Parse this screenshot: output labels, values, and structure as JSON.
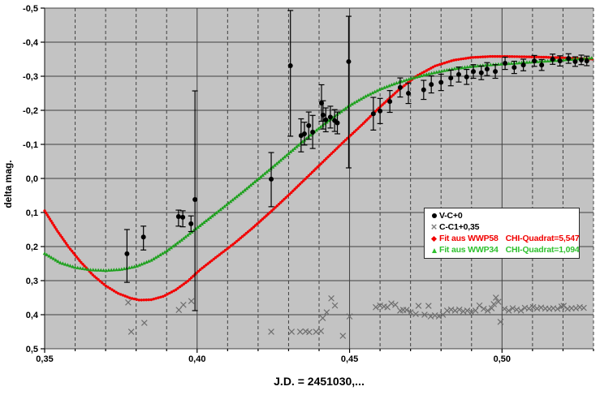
{
  "colors": {
    "plot_background": "#c3c3c3",
    "page_background": "#ffffff",
    "gridline": "#404040",
    "series_black": "#000000",
    "series_gray": "#6e6e6e",
    "series_red": "#f20000",
    "series_green": "#1da11d",
    "legend_green_text": "#2fc12f",
    "legend_red_text": "#f20000"
  },
  "legend": {
    "items": [
      {
        "marker": "circle",
        "color": "#000000",
        "text_color": "#000000",
        "label": "V-C+0",
        "chi": ""
      },
      {
        "marker": "x",
        "color": "#808080",
        "text_color": "#000000",
        "label": "C-C1+0,35",
        "chi": ""
      },
      {
        "marker": "diamond",
        "color": "#f20000",
        "text_color": "#f20000",
        "label": "Fit aus WWP58",
        "chi": "CHI-Quadrat=5,547"
      },
      {
        "marker": "triangle",
        "color": "#2fc12f",
        "text_color": "#2fc12f",
        "label": "Fit aus WWP34",
        "chi": "CHI-Quadrat=1,094"
      }
    ]
  },
  "chart_data": {
    "type": "scatter",
    "title": "",
    "xlabel": "J.D. = 2451030,...",
    "ylabel": "delta mag.",
    "grid": "major-horizontal solid, minor-vertical dashed, gray plot background",
    "legend_position": "middle-right inside plot, white box",
    "x_axis": {
      "min": 0.35,
      "max": 0.53,
      "minor_step": 0.01,
      "major_step": 0.05,
      "tick_labels": [
        {
          "value": 0.35,
          "label": "0,35"
        },
        {
          "value": 0.4,
          "label": "0,40"
        },
        {
          "value": 0.45,
          "label": "0,45"
        },
        {
          "value": 0.5,
          "label": "0,50"
        }
      ]
    },
    "y_axis": {
      "min": -0.5,
      "max": 0.5,
      "step": 0.1,
      "inverted": true,
      "tick_labels": [
        {
          "value": -0.5,
          "label": "-0,5"
        },
        {
          "value": -0.4,
          "label": "-0,4"
        },
        {
          "value": -0.3,
          "label": "-0,3"
        },
        {
          "value": -0.2,
          "label": "-0,2"
        },
        {
          "value": -0.1,
          "label": "-0,1"
        },
        {
          "value": 0.0,
          "label": "0,0"
        },
        {
          "value": 0.1,
          "label": "0,1"
        },
        {
          "value": 0.2,
          "label": "0,2"
        },
        {
          "value": 0.3,
          "label": "0,3"
        },
        {
          "value": 0.4,
          "label": "0,4"
        },
        {
          "value": 0.5,
          "label": "0,5"
        }
      ]
    },
    "series": [
      {
        "name": "V-C+0",
        "type": "scatter",
        "marker": "circle",
        "color": "#000000",
        "error_bars": true,
        "points_format": [
          "jd",
          "mag",
          "bar_top_mag",
          "bar_bottom_mag"
        ],
        "points": [
          [
            0.377,
            0.221,
            0.15,
            0.305
          ],
          [
            0.3824,
            0.172,
            0.14,
            0.21
          ],
          [
            0.3939,
            0.112,
            0.093,
            0.14
          ],
          [
            0.3953,
            0.114,
            0.095,
            0.142
          ],
          [
            0.398,
            0.133,
            0.11,
            0.156
          ],
          [
            0.3993,
            0.062,
            -0.257,
            0.388
          ],
          [
            0.4243,
            0.002,
            -0.076,
            0.083
          ],
          [
            0.4306,
            -0.331,
            -0.493,
            -0.124
          ],
          [
            0.4341,
            -0.126,
            -0.175,
            -0.078
          ],
          [
            0.4352,
            -0.131,
            -0.165,
            -0.098
          ],
          [
            0.4366,
            -0.155,
            -0.195,
            -0.115
          ],
          [
            0.4379,
            -0.136,
            -0.185,
            -0.088
          ],
          [
            0.4408,
            -0.221,
            -0.275,
            -0.168
          ],
          [
            0.4413,
            -0.186,
            -0.228,
            -0.145
          ],
          [
            0.4422,
            -0.172,
            -0.207,
            -0.137
          ],
          [
            0.4437,
            -0.18,
            -0.212,
            -0.148
          ],
          [
            0.4451,
            -0.17,
            -0.202,
            -0.138
          ],
          [
            0.446,
            -0.163,
            -0.195,
            -0.131
          ],
          [
            0.4497,
            -0.343,
            -0.476,
            -0.031
          ],
          [
            0.4578,
            -0.19,
            -0.238,
            -0.142
          ],
          [
            0.46,
            -0.198,
            -0.235,
            -0.161
          ],
          [
            0.4632,
            -0.226,
            -0.258,
            -0.194
          ],
          [
            0.4666,
            -0.267,
            -0.295,
            -0.239
          ],
          [
            0.4693,
            -0.25,
            -0.28,
            -0.22
          ],
          [
            0.4743,
            -0.26,
            -0.288,
            -0.232
          ],
          [
            0.4768,
            -0.276,
            -0.301,
            -0.251
          ],
          [
            0.48,
            -0.282,
            -0.306,
            -0.258
          ],
          [
            0.4832,
            -0.295,
            -0.318,
            -0.272
          ],
          [
            0.4858,
            -0.305,
            -0.327,
            -0.283
          ],
          [
            0.4884,
            -0.298,
            -0.32,
            -0.276
          ],
          [
            0.4906,
            -0.314,
            -0.334,
            -0.294
          ],
          [
            0.4932,
            -0.31,
            -0.33,
            -0.29
          ],
          [
            0.4951,
            -0.321,
            -0.34,
            -0.302
          ],
          [
            0.4978,
            -0.314,
            -0.334,
            -0.294
          ],
          [
            0.501,
            -0.338,
            -0.356,
            -0.32
          ],
          [
            0.504,
            -0.326,
            -0.344,
            -0.308
          ],
          [
            0.507,
            -0.333,
            -0.35,
            -0.316
          ],
          [
            0.5106,
            -0.345,
            -0.361,
            -0.329
          ],
          [
            0.513,
            -0.333,
            -0.349,
            -0.317
          ],
          [
            0.5166,
            -0.35,
            -0.365,
            -0.335
          ],
          [
            0.519,
            -0.345,
            -0.36,
            -0.33
          ],
          [
            0.5218,
            -0.352,
            -0.366,
            -0.338
          ],
          [
            0.524,
            -0.343,
            -0.357,
            -0.329
          ],
          [
            0.526,
            -0.348,
            -0.362,
            -0.334
          ],
          [
            0.5278,
            -0.345,
            -0.359,
            -0.331
          ]
        ]
      },
      {
        "name": "C-C1+0,35",
        "type": "scatter",
        "marker": "x",
        "color": "#6e6e6e",
        "error_bars": false,
        "points_format": [
          "jd",
          "mag"
        ],
        "points": [
          [
            0.3774,
            0.364
          ],
          [
            0.3784,
            0.45
          ],
          [
            0.3827,
            0.424
          ],
          [
            0.394,
            0.386
          ],
          [
            0.3955,
            0.371
          ],
          [
            0.3981,
            0.36
          ],
          [
            0.4243,
            0.45
          ],
          [
            0.431,
            0.45
          ],
          [
            0.4338,
            0.45
          ],
          [
            0.4356,
            0.449
          ],
          [
            0.4368,
            0.451
          ],
          [
            0.439,
            0.45
          ],
          [
            0.4406,
            0.448
          ],
          [
            0.4412,
            0.41
          ],
          [
            0.4425,
            0.393
          ],
          [
            0.444,
            0.352
          ],
          [
            0.4452,
            0.373
          ],
          [
            0.4478,
            0.462
          ],
          [
            0.45,
            0.405
          ],
          [
            0.4586,
            0.378
          ],
          [
            0.46,
            0.373
          ],
          [
            0.4613,
            0.376
          ],
          [
            0.4624,
            0.378
          ],
          [
            0.4637,
            0.367
          ],
          [
            0.465,
            0.371
          ],
          [
            0.4666,
            0.388
          ],
          [
            0.4676,
            0.386
          ],
          [
            0.4687,
            0.386
          ],
          [
            0.47,
            0.393
          ],
          [
            0.4717,
            0.398
          ],
          [
            0.4726,
            0.374
          ],
          [
            0.4746,
            0.4
          ],
          [
            0.4759,
            0.374
          ],
          [
            0.4766,
            0.405
          ],
          [
            0.478,
            0.402
          ],
          [
            0.4793,
            0.405
          ],
          [
            0.4806,
            0.4
          ],
          [
            0.482,
            0.388
          ],
          [
            0.4833,
            0.385
          ],
          [
            0.4846,
            0.388
          ],
          [
            0.486,
            0.385
          ],
          [
            0.4873,
            0.39
          ],
          [
            0.4886,
            0.388
          ],
          [
            0.49,
            0.393
          ],
          [
            0.4913,
            0.388
          ],
          [
            0.4926,
            0.373
          ],
          [
            0.494,
            0.383
          ],
          [
            0.4953,
            0.388
          ],
          [
            0.4966,
            0.381
          ],
          [
            0.4973,
            0.369
          ],
          [
            0.498,
            0.35
          ],
          [
            0.4988,
            0.362
          ],
          [
            0.4995,
            0.421
          ],
          [
            0.5008,
            0.383
          ],
          [
            0.5022,
            0.388
          ],
          [
            0.5035,
            0.381
          ],
          [
            0.5048,
            0.385
          ],
          [
            0.5062,
            0.388
          ],
          [
            0.5075,
            0.38
          ],
          [
            0.5088,
            0.382
          ],
          [
            0.5102,
            0.378
          ],
          [
            0.5115,
            0.382
          ],
          [
            0.5128,
            0.379
          ],
          [
            0.5142,
            0.382
          ],
          [
            0.5155,
            0.383
          ],
          [
            0.5168,
            0.381
          ],
          [
            0.5182,
            0.383
          ],
          [
            0.5195,
            0.376
          ],
          [
            0.5202,
            0.374
          ],
          [
            0.5215,
            0.383
          ],
          [
            0.5228,
            0.381
          ],
          [
            0.5242,
            0.381
          ],
          [
            0.5255,
            0.378
          ],
          [
            0.5268,
            0.38
          ]
        ]
      },
      {
        "name": "Fit aus WWP58  CHI-Quadrat=5,547",
        "type": "fit-curve",
        "marker": "dot",
        "color": "#f20000",
        "points_format": [
          "jd",
          "mag"
        ],
        "points": [
          [
            0.35,
            0.095
          ],
          [
            0.354,
            0.152
          ],
          [
            0.358,
            0.203
          ],
          [
            0.362,
            0.247
          ],
          [
            0.366,
            0.285
          ],
          [
            0.37,
            0.315
          ],
          [
            0.374,
            0.337
          ],
          [
            0.378,
            0.351
          ],
          [
            0.381,
            0.357
          ],
          [
            0.385,
            0.356
          ],
          [
            0.389,
            0.346
          ],
          [
            0.393,
            0.327
          ],
          [
            0.397,
            0.301
          ],
          [
            0.401,
            0.268
          ],
          [
            0.406,
            0.233
          ],
          [
            0.412,
            0.192
          ],
          [
            0.418,
            0.147
          ],
          [
            0.424,
            0.099
          ],
          [
            0.43,
            0.049
          ],
          [
            0.436,
            -0.003
          ],
          [
            0.442,
            -0.055
          ],
          [
            0.448,
            -0.107
          ],
          [
            0.454,
            -0.157
          ],
          [
            0.46,
            -0.21
          ],
          [
            0.466,
            -0.259
          ],
          [
            0.472,
            -0.301
          ],
          [
            0.478,
            -0.33
          ],
          [
            0.484,
            -0.347
          ],
          [
            0.49,
            -0.355
          ],
          [
            0.496,
            -0.358
          ],
          [
            0.502,
            -0.358
          ],
          [
            0.508,
            -0.357
          ],
          [
            0.514,
            -0.356
          ],
          [
            0.52,
            -0.354
          ],
          [
            0.525,
            -0.352
          ],
          [
            0.53,
            -0.35
          ]
        ]
      },
      {
        "name": "Fit aus WWP34  CHI-Quadrat=1,094",
        "type": "fit-curve",
        "marker": "triangle",
        "color": "#1da11d",
        "points_format": [
          "jd",
          "mag"
        ],
        "points": [
          [
            0.35,
            0.22
          ],
          [
            0.355,
            0.247
          ],
          [
            0.36,
            0.261
          ],
          [
            0.365,
            0.268
          ],
          [
            0.37,
            0.27
          ],
          [
            0.375,
            0.267
          ],
          [
            0.38,
            0.258
          ],
          [
            0.385,
            0.24
          ],
          [
            0.39,
            0.213
          ],
          [
            0.395,
            0.18
          ],
          [
            0.4,
            0.145
          ],
          [
            0.405,
            0.11
          ],
          [
            0.41,
            0.075
          ],
          [
            0.415,
            0.039
          ],
          [
            0.42,
            0.002
          ],
          [
            0.425,
            -0.035
          ],
          [
            0.43,
            -0.073
          ],
          [
            0.435,
            -0.111
          ],
          [
            0.44,
            -0.148
          ],
          [
            0.445,
            -0.182
          ],
          [
            0.45,
            -0.214
          ],
          [
            0.455,
            -0.24
          ],
          [
            0.46,
            -0.262
          ],
          [
            0.465,
            -0.279
          ],
          [
            0.47,
            -0.293
          ],
          [
            0.475,
            -0.305
          ],
          [
            0.48,
            -0.315
          ],
          [
            0.485,
            -0.323
          ],
          [
            0.49,
            -0.329
          ],
          [
            0.495,
            -0.333
          ],
          [
            0.5,
            -0.336
          ],
          [
            0.505,
            -0.339
          ],
          [
            0.51,
            -0.342
          ],
          [
            0.515,
            -0.345
          ],
          [
            0.52,
            -0.348
          ],
          [
            0.525,
            -0.351
          ],
          [
            0.53,
            -0.354
          ]
        ]
      }
    ]
  }
}
